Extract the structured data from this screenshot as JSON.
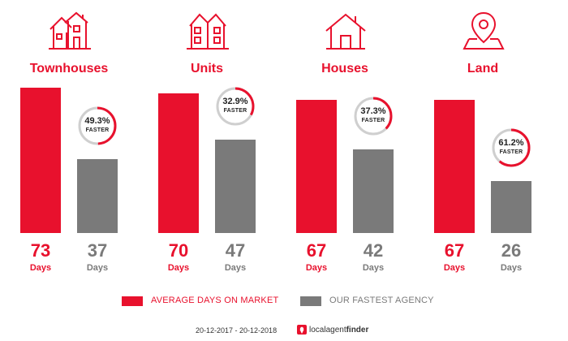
{
  "chart_data": {
    "type": "bar",
    "categories": [
      "Townhouses",
      "Units",
      "Houses",
      "Land"
    ],
    "icons": [
      "townhouse-icon",
      "units-icon",
      "house-icon",
      "land-pin-icon"
    ],
    "series": [
      {
        "name": "AVERAGE DAYS ON MARKET",
        "values": [
          73,
          70,
          67,
          67
        ],
        "color": "#e8112d"
      },
      {
        "name": "OUR FASTEST AGENCY",
        "values": [
          37,
          47,
          42,
          26
        ],
        "color": "#7a7a7a"
      }
    ],
    "days_unit": "Days",
    "faster_percent": [
      "49.3%",
      "32.9%",
      "37.3%",
      "61.2%"
    ],
    "faster_fraction": [
      0.493,
      0.329,
      0.373,
      0.612
    ],
    "faster_label": "FASTER",
    "ylim": [
      0,
      73
    ]
  },
  "footer": {
    "date_range": "20-12-2017 - 20-12-2018",
    "brand_left": "localagent",
    "brand_right": "finder"
  }
}
